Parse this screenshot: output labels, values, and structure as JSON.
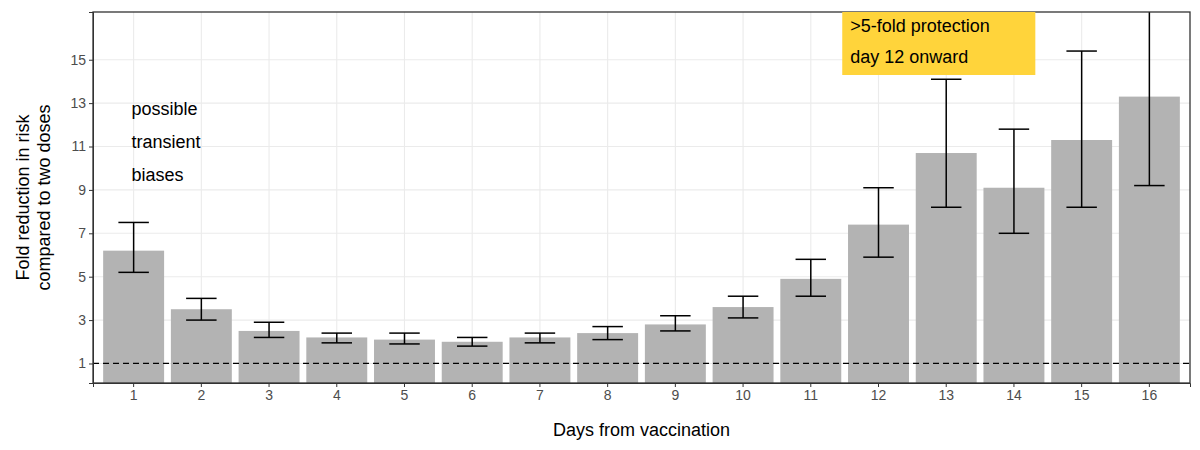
{
  "chart_data": {
    "type": "bar",
    "x_label": "Days from vaccination",
    "y_label": [
      "Fold reduction in risk",
      "compared to two doses"
    ],
    "categories": [
      1,
      2,
      3,
      4,
      5,
      6,
      7,
      8,
      9,
      10,
      11,
      12,
      13,
      14,
      15,
      16
    ],
    "values": [
      6.2,
      3.5,
      2.5,
      2.2,
      2.1,
      2.0,
      2.2,
      2.4,
      2.8,
      3.6,
      4.9,
      7.4,
      10.7,
      9.1,
      11.3,
      13.3
    ],
    "error_low": [
      5.2,
      3.0,
      2.2,
      1.95,
      1.9,
      1.8,
      1.95,
      2.1,
      2.5,
      3.1,
      4.1,
      5.9,
      8.2,
      7.0,
      8.2,
      9.2
    ],
    "error_high": [
      7.5,
      4.0,
      2.9,
      2.4,
      2.4,
      2.2,
      2.4,
      2.7,
      3.2,
      4.1,
      5.8,
      9.1,
      14.1,
      11.8,
      15.4,
      17.5
    ],
    "color": "#b3b3b3",
    "hline": 1,
    "ylim": [
      0.1,
      17.2
    ],
    "yticks": [
      1,
      3,
      5,
      7,
      9,
      11,
      13,
      15
    ],
    "grid": true,
    "annotations": [
      {
        "lines": [
          "possible",
          "transient",
          "biases"
        ]
      },
      {
        "lines": [
          ">5-fold protection",
          "day 12 onward"
        ],
        "color": "#ffd43b"
      }
    ]
  }
}
